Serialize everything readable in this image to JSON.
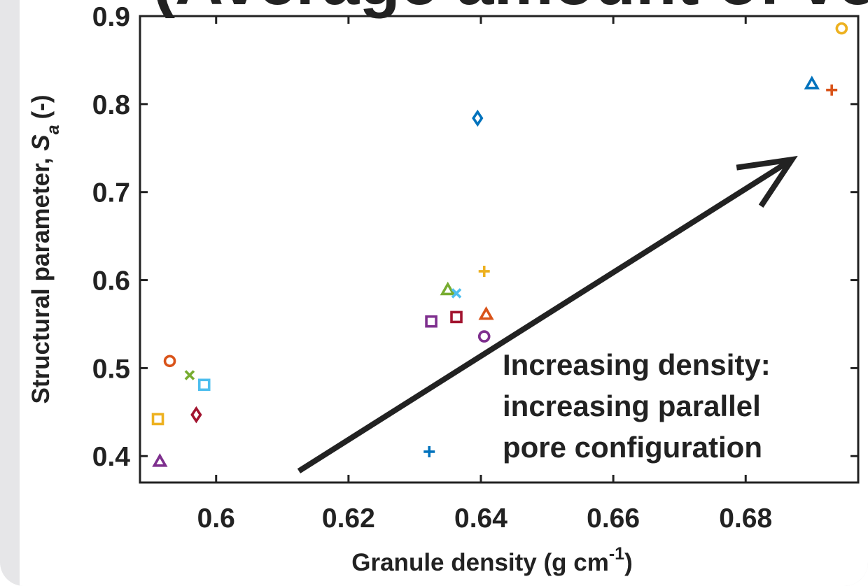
{
  "title_fragment": "(Average amount  of  voids)",
  "chart_data": {
    "type": "scatter",
    "xlabel": "Granule density (g cm",
    "xlabel_sup": "-1",
    "xlabel_end": ")",
    "ylabel": "Structural parameter,",
    "ylabel_symbol": "S",
    "ylabel_sub": "a",
    "ylabel_unit": "(-)",
    "xlim": [
      0.5885,
      0.697
    ],
    "ylim": [
      0.37,
      0.9
    ],
    "x_ticks": [
      0.6,
      0.62,
      0.64,
      0.66,
      0.68
    ],
    "x_tick_labels": [
      "0.6",
      "0.62",
      "0.64",
      "0.66",
      "0.68"
    ],
    "y_ticks": [
      0.4,
      0.5,
      0.6,
      0.7,
      0.8,
      0.9
    ],
    "y_tick_labels": [
      "0.4",
      "0.5",
      "0.6",
      "0.7",
      "0.8",
      "0.9"
    ],
    "grid": false,
    "annotation": {
      "lines": [
        "Increasing density:",
        "increasing parallel",
        "pore configuration"
      ],
      "arrow_from": [
        0.6125,
        0.383
      ],
      "arrow_to": [
        0.687,
        0.737
      ]
    },
    "points": [
      {
        "x": 0.593,
        "y": 0.508,
        "marker": "circle",
        "color": "#d95319"
      },
      {
        "x": 0.596,
        "y": 0.492,
        "marker": "x",
        "color": "#77ac30"
      },
      {
        "x": 0.5982,
        "y": 0.481,
        "marker": "square",
        "color": "#4dbeee"
      },
      {
        "x": 0.597,
        "y": 0.447,
        "marker": "diamond",
        "color": "#a2142f"
      },
      {
        "x": 0.5912,
        "y": 0.442,
        "marker": "square",
        "color": "#edb120"
      },
      {
        "x": 0.5915,
        "y": 0.394,
        "marker": "triangle",
        "color": "#7e2f8e"
      },
      {
        "x": 0.6325,
        "y": 0.553,
        "marker": "square",
        "color": "#7e2f8e"
      },
      {
        "x": 0.6363,
        "y": 0.558,
        "marker": "square",
        "color": "#a2142f"
      },
      {
        "x": 0.635,
        "y": 0.589,
        "marker": "triangle",
        "color": "#77ac30"
      },
      {
        "x": 0.6363,
        "y": 0.585,
        "marker": "x",
        "color": "#4dbeee"
      },
      {
        "x": 0.6405,
        "y": 0.61,
        "marker": "plus",
        "color": "#edb120"
      },
      {
        "x": 0.6408,
        "y": 0.561,
        "marker": "triangle",
        "color": "#d95319"
      },
      {
        "x": 0.6405,
        "y": 0.536,
        "marker": "circle",
        "color": "#7e2f8e"
      },
      {
        "x": 0.6395,
        "y": 0.784,
        "marker": "diamond",
        "color": "#0072bd"
      },
      {
        "x": 0.6322,
        "y": 0.405,
        "marker": "plus",
        "color": "#0072bd"
      },
      {
        "x": 0.6945,
        "y": 0.886,
        "marker": "circle",
        "color": "#edb120"
      },
      {
        "x": 0.69,
        "y": 0.823,
        "marker": "triangle",
        "color": "#0072bd"
      },
      {
        "x": 0.693,
        "y": 0.816,
        "marker": "plus",
        "color": "#d95319"
      }
    ]
  }
}
